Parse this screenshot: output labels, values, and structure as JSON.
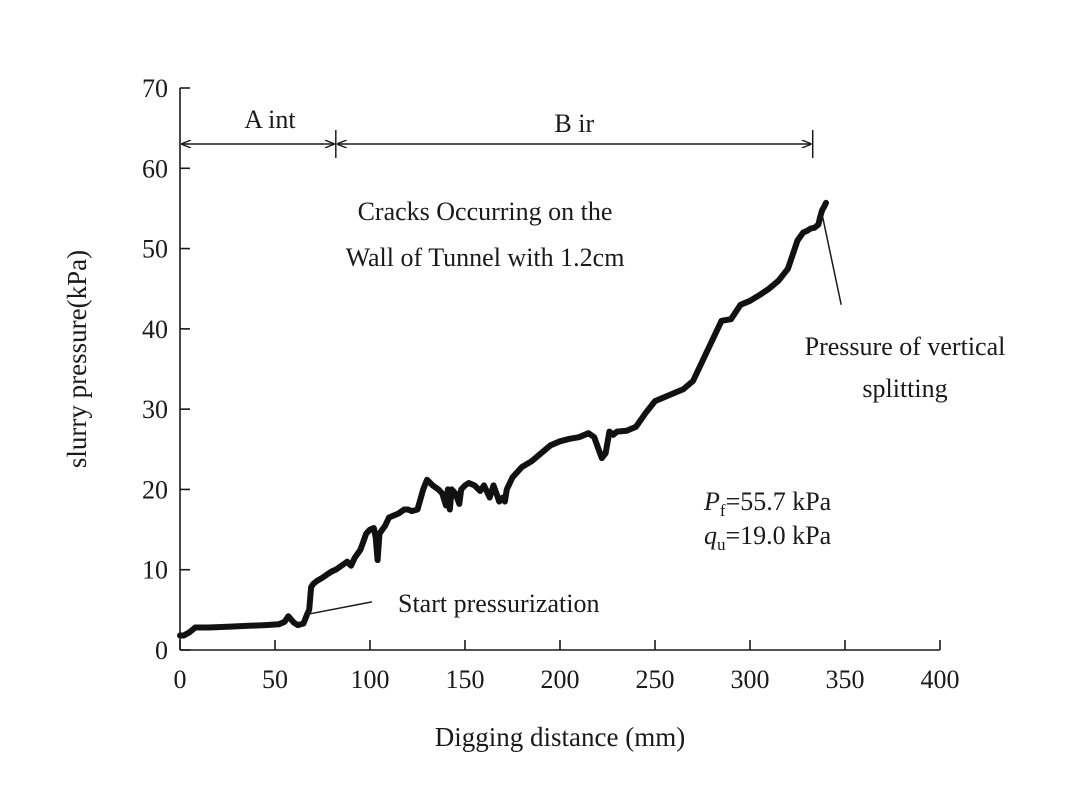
{
  "chart_data": {
    "type": "line",
    "title": "",
    "xlabel": "Digging distance (mm)",
    "ylabel": "slurry pressure(kPa)",
    "xlim": [
      0,
      400
    ],
    "ylim": [
      0,
      70
    ],
    "xticks": [
      0,
      50,
      100,
      150,
      200,
      250,
      300,
      350,
      400
    ],
    "yticks": [
      0,
      10,
      20,
      30,
      40,
      50,
      60,
      70
    ],
    "grid": false,
    "legend": "none",
    "series": [
      {
        "x": [
          0,
          2,
          5,
          8,
          15,
          25,
          35,
          45,
          52,
          55,
          57,
          60,
          62,
          65,
          67,
          68,
          69,
          70,
          72,
          75,
          78,
          80,
          82,
          85,
          88,
          90,
          92,
          95,
          98,
          100,
          102,
          103,
          104,
          105,
          108,
          110,
          115,
          118,
          120,
          122,
          125,
          128,
          130,
          133,
          136,
          138,
          140,
          141,
          142,
          143,
          145,
          147,
          148,
          150,
          152,
          155,
          158,
          160,
          163,
          165,
          167,
          168,
          170,
          171,
          172,
          175,
          180,
          185,
          190,
          195,
          200,
          205,
          210,
          215,
          218,
          220,
          222,
          224,
          226,
          228,
          230,
          235,
          240,
          245,
          250,
          255,
          260,
          265,
          270,
          275,
          280,
          285,
          290,
          295,
          300,
          305,
          310,
          315,
          320,
          325,
          328,
          330,
          332,
          334,
          336,
          337,
          338,
          339,
          340
        ],
        "values": [
          1.8,
          1.8,
          2.2,
          2.8,
          2.8,
          2.9,
          3.0,
          3.1,
          3.2,
          3.5,
          4.2,
          3.4,
          3.1,
          3.3,
          4.5,
          5.0,
          7.8,
          8.2,
          8.6,
          9.0,
          9.5,
          9.8,
          10.0,
          10.5,
          11.0,
          10.5,
          11.5,
          12.5,
          14.5,
          15.0,
          15.2,
          14.0,
          11.2,
          14.5,
          15.5,
          16.5,
          17.0,
          17.5,
          17.5,
          17.3,
          17.5,
          20.0,
          21.2,
          20.5,
          20.0,
          19.5,
          18.0,
          20.0,
          17.5,
          20.0,
          19.5,
          18.2,
          20.0,
          20.5,
          20.8,
          20.5,
          19.8,
          20.5,
          19.0,
          20.5,
          19.2,
          18.5,
          19.0,
          18.5,
          20.0,
          21.5,
          22.8,
          23.5,
          24.5,
          25.5,
          26.0,
          26.3,
          26.5,
          27.0,
          26.5,
          25.2,
          23.9,
          24.5,
          27.2,
          26.8,
          27.2,
          27.3,
          27.8,
          29.5,
          31.0,
          31.5,
          32.0,
          32.5,
          33.5,
          36.0,
          38.5,
          41.0,
          41.2,
          43.0,
          43.5,
          44.2,
          45.0,
          46.0,
          47.5,
          51.0,
          52.0,
          52.2,
          52.5,
          52.6,
          53.0,
          54.0,
          54.8,
          55.2,
          55.7
        ]
      }
    ],
    "annotations": {
      "range_a": "A int",
      "range_b": "B ir",
      "cracks_line1": "Cracks Occurring on the",
      "cracks_line2": "Wall of Tunnel with 1.2cm",
      "vertical_line1": "Pressure of vertical",
      "vertical_line2": "splitting",
      "start": "Start pressurization",
      "pf_symbol": "P",
      "pf_sub": "f",
      "pf_rest": "=55.7 kPa",
      "qu_symbol": "q",
      "qu_sub": "u",
      "qu_rest": "=19.0 kPa"
    },
    "ranges": {
      "a": [
        0,
        82
      ],
      "b": [
        82,
        333
      ]
    },
    "arrow_points": {
      "start_from": [
        101,
        6.0
      ],
      "start_to": [
        66,
        4.4
      ],
      "vertical_from": [
        338,
        54.2
      ],
      "vertical_to": [
        348,
        43.0
      ]
    }
  }
}
